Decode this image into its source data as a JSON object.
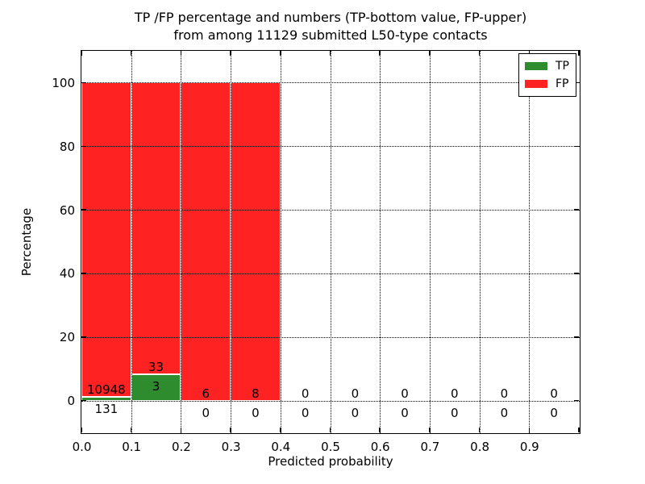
{
  "title": {
    "line1": "TP /FP percentage and numbers (TP-bottom value, FP-upper)",
    "line2": "from among 11129 submitted L50-type contacts"
  },
  "chart_data": {
    "type": "bar",
    "stacked": true,
    "title": "TP /FP percentage and numbers (TP-bottom value, FP-upper) from among 11129 submitted L50-type contacts",
    "xlabel": "Predicted probability",
    "ylabel": "Percentage",
    "xlim": [
      0.0,
      1.0
    ],
    "ylim": [
      -10,
      110
    ],
    "xticks": [
      {
        "v": 0.0,
        "label": "0.0"
      },
      {
        "v": 0.1,
        "label": "0.1"
      },
      {
        "v": 0.2,
        "label": "0.2"
      },
      {
        "v": 0.3,
        "label": "0.3"
      },
      {
        "v": 0.4,
        "label": "0.4"
      },
      {
        "v": 0.5,
        "label": "0.5"
      },
      {
        "v": 0.6,
        "label": "0.6"
      },
      {
        "v": 0.7,
        "label": "0.7"
      },
      {
        "v": 0.8,
        "label": "0.8"
      },
      {
        "v": 0.9,
        "label": "0.9"
      }
    ],
    "xticks_unlabeled": [
      1.0
    ],
    "yticks": [
      {
        "v": 0,
        "label": "0"
      },
      {
        "v": 20,
        "label": "20"
      },
      {
        "v": 40,
        "label": "40"
      },
      {
        "v": 60,
        "label": "60"
      },
      {
        "v": 80,
        "label": "80"
      },
      {
        "v": 100,
        "label": "100"
      }
    ],
    "grid": {
      "style": "dotted",
      "color": "#000000",
      "above_bars": true
    },
    "bar_edge_color": "#ffffff",
    "total_submitted": 11129,
    "legend": {
      "position": "upper right",
      "entries": [
        {
          "label": "TP",
          "color": "#2e8b2e"
        },
        {
          "label": "FP",
          "color": "#ff2222"
        }
      ]
    },
    "bins": [
      {
        "x_start": 0.0,
        "x_end": 0.1,
        "tp_count": 131,
        "fp_count": 10948
      },
      {
        "x_start": 0.1,
        "x_end": 0.2,
        "tp_count": 3,
        "fp_count": 33
      },
      {
        "x_start": 0.2,
        "x_end": 0.3,
        "tp_count": 0,
        "fp_count": 6
      },
      {
        "x_start": 0.3,
        "x_end": 0.4,
        "tp_count": 0,
        "fp_count": 8
      },
      {
        "x_start": 0.4,
        "x_end": 0.5,
        "tp_count": 0,
        "fp_count": 0
      },
      {
        "x_start": 0.5,
        "x_end": 0.6,
        "tp_count": 0,
        "fp_count": 0
      },
      {
        "x_start": 0.6,
        "x_end": 0.7,
        "tp_count": 0,
        "fp_count": 0
      },
      {
        "x_start": 0.7,
        "x_end": 0.8,
        "tp_count": 0,
        "fp_count": 0
      },
      {
        "x_start": 0.8,
        "x_end": 0.9,
        "tp_count": 0,
        "fp_count": 0
      },
      {
        "x_start": 0.9,
        "x_end": 1.0,
        "tp_count": 0,
        "fp_count": 0
      }
    ]
  }
}
